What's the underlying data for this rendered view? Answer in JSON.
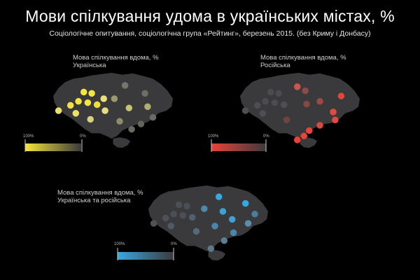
{
  "header": {
    "title": "Мови спілкування удома в українських містах, %",
    "subtitle": "Соціологічне опитування, соціологічна група «Рейтинг», березень 2015. (без Криму і Донбасу)"
  },
  "panels": [
    {
      "key": "ukrainian",
      "label_line1": "Мова спілкування вдома, %",
      "label_line2": "Українська",
      "color": "#f5e63c",
      "legend_min": "100%",
      "legend_max": "0%"
    },
    {
      "key": "russian",
      "label_line1": "Мова спілкування вдома, %",
      "label_line2": "Російська",
      "color": "#e8433a",
      "legend_min": "100%",
      "legend_max": "0%"
    },
    {
      "key": "both",
      "label_line1": "Мова спілкування вдома, %",
      "label_line2": "Українська та російська",
      "color": "#3aa8e0",
      "legend_min": "100%",
      "legend_max": "0%"
    }
  ],
  "colors": {
    "background": "#000000",
    "map_fill": "#3a3a3c",
    "neutral_dot": "#55565a"
  }
}
